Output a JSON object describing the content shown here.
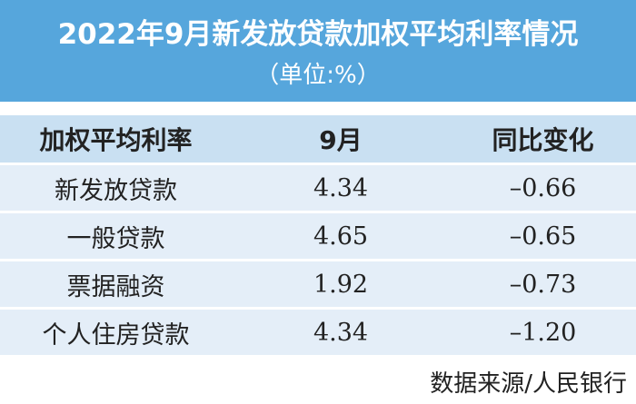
{
  "header": {
    "title": "2022年9月新发放贷款加权平均利率情况",
    "subtitle": "（单位:%）"
  },
  "table": {
    "columns": [
      "加权平均利率",
      "9月",
      "同比变化"
    ],
    "rows": [
      [
        "新发放贷款",
        "4.34",
        "–0.66"
      ],
      [
        "一般贷款",
        "4.65",
        "–0.65"
      ],
      [
        "票据融资",
        "1.92",
        "–0.73"
      ],
      [
        "个人住房贷款",
        "4.34",
        "–1.20"
      ]
    ]
  },
  "source": "数据来源/人民银行"
}
